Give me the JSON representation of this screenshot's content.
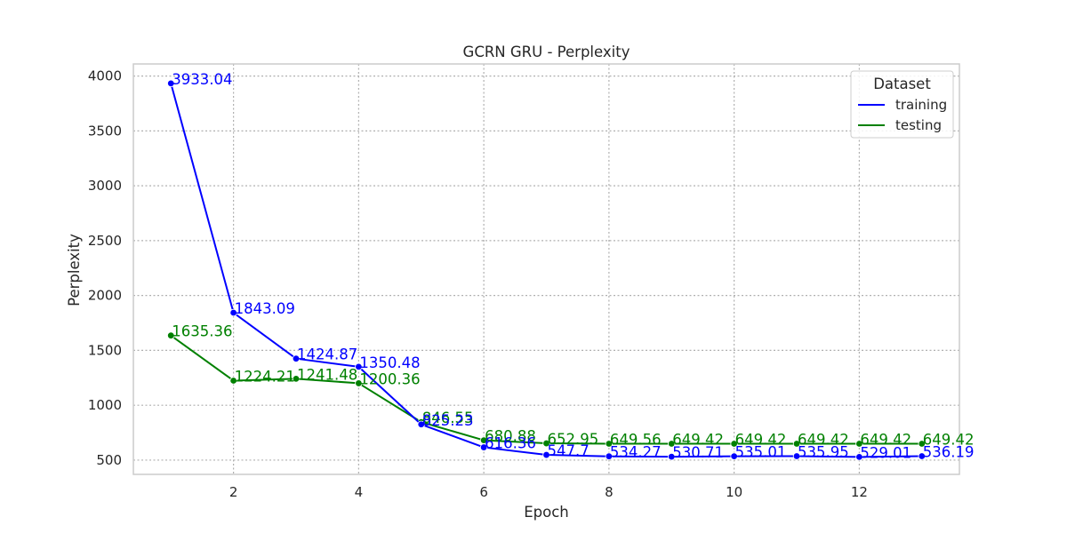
{
  "chart_data": {
    "type": "line",
    "title": "GCRN GRU - Perplexity",
    "xlabel": "Epoch",
    "ylabel": "Perplexity",
    "xlim": [
      0.4,
      13.6
    ],
    "ylim": [
      370,
      4110
    ],
    "x_ticks": [
      2,
      4,
      6,
      8,
      10,
      12
    ],
    "y_ticks": [
      500,
      1000,
      1500,
      2000,
      2500,
      3000,
      3500,
      4000
    ],
    "grid": true,
    "legend": {
      "title": "Dataset",
      "placement": "top-right"
    },
    "x": [
      1,
      2,
      3,
      4,
      5,
      6,
      7,
      8,
      9,
      10,
      11,
      12,
      13
    ],
    "series": [
      {
        "name": "training",
        "color": "#0000ff",
        "values": [
          3933.04,
          1843.09,
          1424.87,
          1350.48,
          825.23,
          616.36,
          547.7,
          534.27,
          530.71,
          535.01,
          535.95,
          529.01,
          536.19
        ],
        "labels": [
          "3933.04",
          "1843.09",
          "1424.87",
          "1350.48",
          "825.23",
          "616.36",
          "547.7",
          "534.27",
          "530.71",
          "535.01",
          "535.95",
          "529.01",
          "536.19"
        ]
      },
      {
        "name": "testing",
        "color": "#008000",
        "values": [
          1635.36,
          1224.21,
          1241.48,
          1200.36,
          846.55,
          680.88,
          652.95,
          649.56,
          649.42,
          649.42,
          649.42,
          649.42,
          649.42
        ],
        "labels": [
          "1635.36",
          "1224.21",
          "1241.48",
          "1200.36",
          "846.55",
          "680.88",
          "652.95",
          "649.56",
          "649.42",
          "649.42",
          "649.42",
          "649.42",
          "649.42"
        ]
      }
    ]
  }
}
